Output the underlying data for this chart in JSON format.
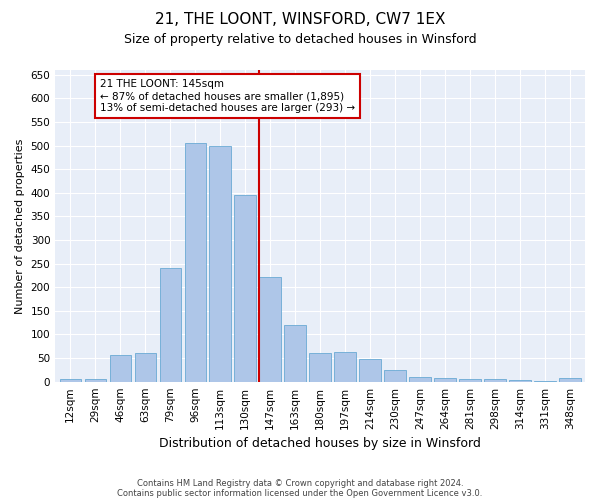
{
  "title": "21, THE LOONT, WINSFORD, CW7 1EX",
  "subtitle": "Size of property relative to detached houses in Winsford",
  "xlabel": "Distribution of detached houses by size in Winsford",
  "ylabel": "Number of detached properties",
  "footnote1": "Contains HM Land Registry data © Crown copyright and database right 2024.",
  "footnote2": "Contains public sector information licensed under the Open Government Licence v3.0.",
  "categories": [
    "12sqm",
    "29sqm",
    "46sqm",
    "63sqm",
    "79sqm",
    "96sqm",
    "113sqm",
    "130sqm",
    "147sqm",
    "163sqm",
    "180sqm",
    "197sqm",
    "214sqm",
    "230sqm",
    "247sqm",
    "264sqm",
    "281sqm",
    "298sqm",
    "314sqm",
    "331sqm",
    "348sqm"
  ],
  "values": [
    5,
    5,
    57,
    60,
    240,
    505,
    500,
    395,
    222,
    120,
    60,
    62,
    47,
    25,
    10,
    8,
    6,
    6,
    3,
    1,
    8
  ],
  "bar_color": "#aec6e8",
  "bar_edge_color": "#6aaad4",
  "red_line_x": 7.575,
  "annotation_text": "21 THE LOONT: 145sqm\n← 87% of detached houses are smaller (1,895)\n13% of semi-detached houses are larger (293) →",
  "annotation_box_color": "#ffffff",
  "annotation_box_edge": "#cc0000",
  "ylim": [
    0,
    660
  ],
  "yticks": [
    0,
    50,
    100,
    150,
    200,
    250,
    300,
    350,
    400,
    450,
    500,
    550,
    600,
    650
  ],
  "plot_bg_color": "#e8eef8",
  "title_fontsize": 11,
  "subtitle_fontsize": 9,
  "tick_fontsize": 7.5,
  "ylabel_fontsize": 8,
  "xlabel_fontsize": 9,
  "annot_fontsize": 7.5,
  "footnote_fontsize": 6
}
